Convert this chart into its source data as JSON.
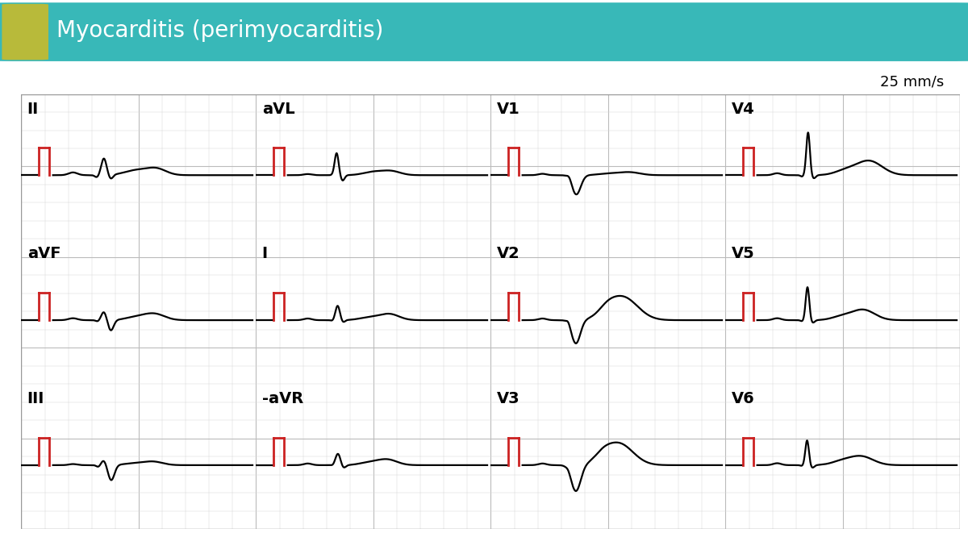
{
  "title": "Myocarditis (perimyocarditis)",
  "speed_label": "25 mm/s",
  "title_bg": "#38b8b8",
  "title_accent": "#b8ba3a",
  "title_text_color": "#ffffff",
  "grid_minor_color": "#d8d8d8",
  "grid_major_color": "#bbbbbb",
  "bg_color": "#ffffff",
  "ecg_area_bg": "#f5f5f5",
  "ecg_color": "#000000",
  "cal_color": "#cc2222",
  "leads": [
    "II",
    "aVL",
    "V1",
    "V4",
    "aVF",
    "I",
    "V2",
    "V5",
    "III",
    "-aVR",
    "V3",
    "V6"
  ],
  "title_fontsize": 20,
  "lead_fontsize": 14,
  "speed_fontsize": 13
}
